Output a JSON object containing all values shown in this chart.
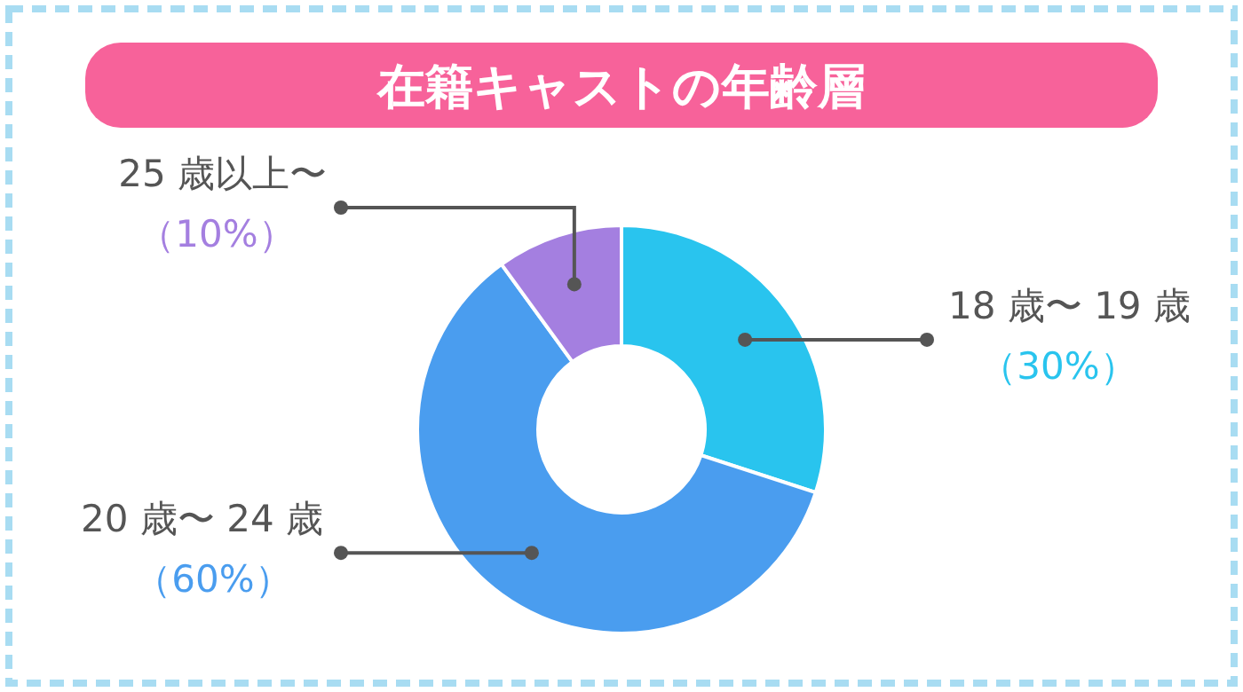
{
  "chart_data": {
    "type": "donut",
    "title": "在籍キャストの年齢層",
    "categories": [
      "18 歳〜 19 歳",
      "20 歳〜 24 歳",
      "25 歳以上〜"
    ],
    "values": [
      30,
      60,
      10
    ],
    "colors": [
      "#29c4ee",
      "#4a9def",
      "#a47fe0"
    ],
    "value_labels": [
      "（30%）",
      "（60%）",
      "（10%）"
    ]
  }
}
